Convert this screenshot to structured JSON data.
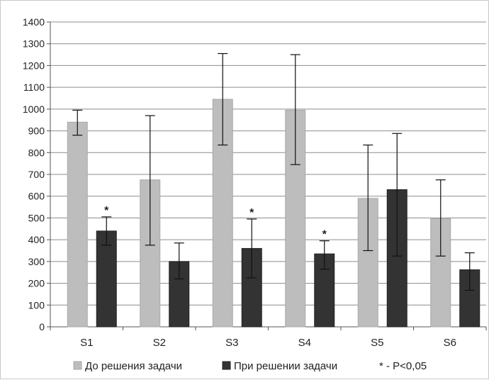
{
  "chart_data": {
    "type": "bar",
    "categories": [
      "S1",
      "S2",
      "S3",
      "S4",
      "S5",
      "S6"
    ],
    "ylim": [
      0,
      1400
    ],
    "yticks": [
      0,
      100,
      200,
      300,
      400,
      500,
      600,
      700,
      800,
      900,
      1000,
      1100,
      1200,
      1300,
      1400
    ],
    "grid": true,
    "legend_position": "bottom",
    "series": [
      {
        "name": "До решения задачи",
        "color": "#bdbdbd",
        "values": [
          940,
          675,
          1045,
          995,
          590,
          498
        ],
        "err_low": [
          880,
          375,
          835,
          745,
          350,
          325
        ],
        "err_high": [
          995,
          970,
          1255,
          1250,
          835,
          675
        ]
      },
      {
        "name": "При решении задачи",
        "color": "#333333",
        "values": [
          440,
          300,
          360,
          335,
          630,
          262
        ],
        "err_low": [
          375,
          220,
          225,
          265,
          325,
          168
        ],
        "err_high": [
          505,
          385,
          495,
          395,
          888,
          340
        ]
      }
    ],
    "significance_marks": [
      {
        "category": "S1",
        "label": "*"
      },
      {
        "category": "S3",
        "label": "*"
      },
      {
        "category": "S4",
        "label": "*"
      }
    ],
    "legend_note": "* - P<0,05"
  }
}
